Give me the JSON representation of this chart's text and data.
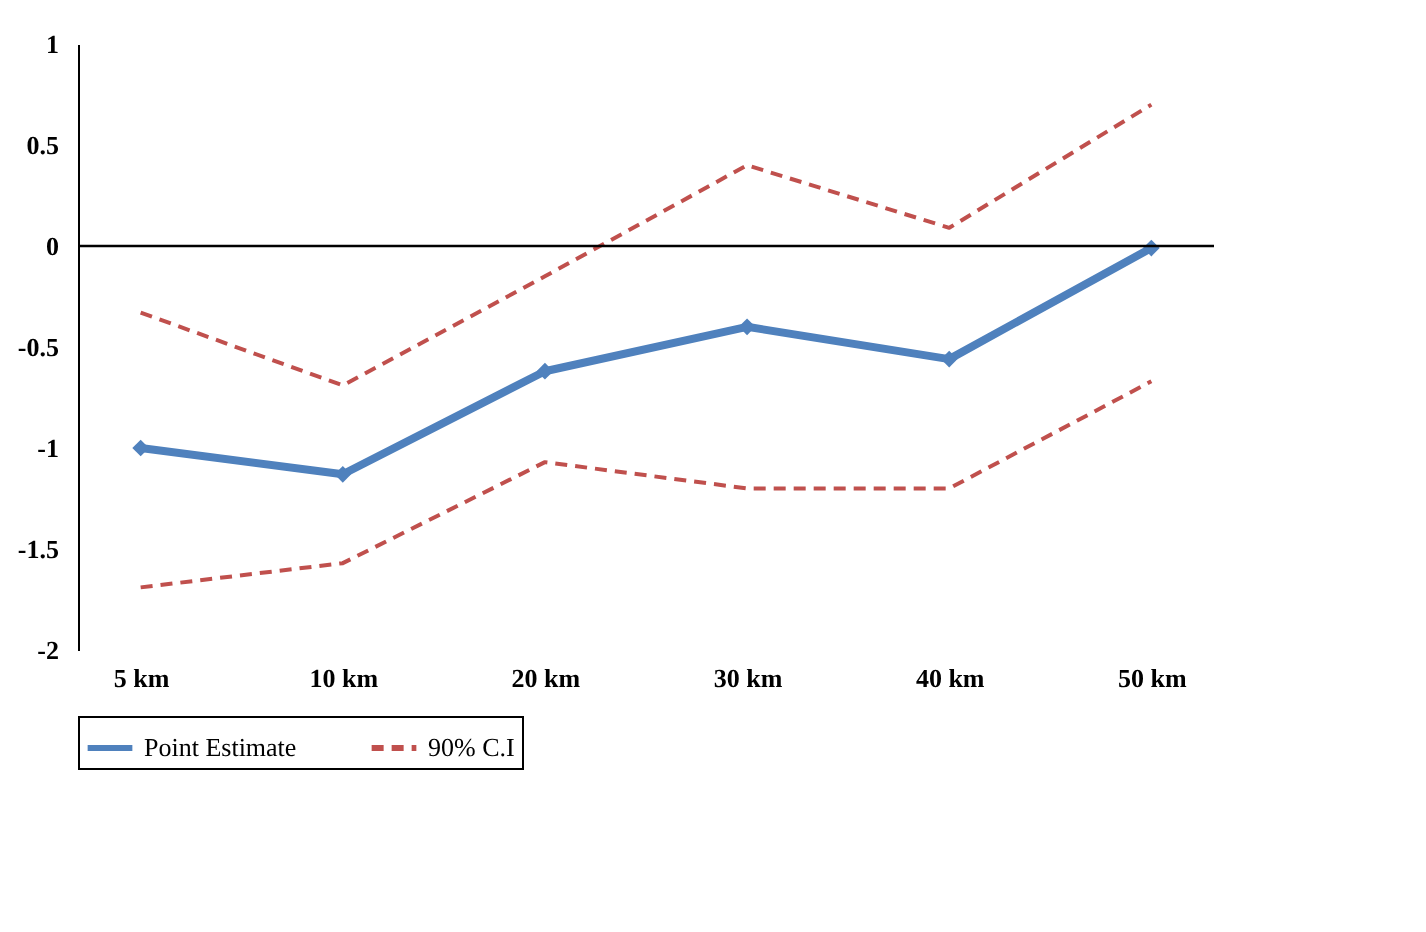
{
  "chart_data": {
    "type": "line",
    "categories": [
      "5 km",
      "10 km",
      "20 km",
      "30 km",
      "40 km",
      "50 km"
    ],
    "series": [
      {
        "name": "Point Estimate",
        "color": "#4f81bd",
        "values": [
          -1.0,
          -1.13,
          -0.62,
          -0.4,
          -0.56,
          -0.01
        ],
        "marker": "diamond",
        "line_style": "solid"
      },
      {
        "name": "90% C.I",
        "color": "#c0504d",
        "values": [
          -0.33,
          -0.69,
          -0.15,
          0.4,
          0.09,
          0.7
        ],
        "marker": "none",
        "line_style": "dashed"
      },
      {
        "color": "#c0504d",
        "values": [
          -1.69,
          -1.57,
          -1.07,
          -1.2,
          -1.2,
          -0.67
        ],
        "marker": "none",
        "line_style": "dashed"
      }
    ],
    "ylim": [
      -2,
      1
    ],
    "yticks": [
      -2,
      -1.5,
      -1,
      -0.5,
      0,
      0.5,
      1
    ],
    "grid": false,
    "legend": "bottom",
    "ref_lines": [
      {
        "axis": "y",
        "value": 0,
        "color": "#000000"
      }
    ]
  }
}
